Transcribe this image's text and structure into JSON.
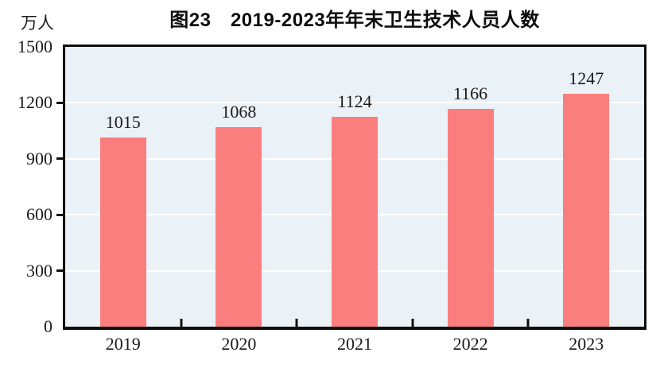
{
  "chart_data": {
    "type": "bar",
    "title": "图23　2019-2023年年末卫生技术人员人数",
    "unit": "万人",
    "categories": [
      "2019",
      "2020",
      "2021",
      "2022",
      "2023"
    ],
    "values": [
      1015,
      1068,
      1124,
      1166,
      1247
    ],
    "ylim": [
      0,
      1500
    ],
    "yticks": [
      0,
      300,
      600,
      900,
      1200,
      1500
    ],
    "grid": true,
    "legend": false,
    "colors": {
      "bar": "#fb7e7e",
      "plot_background": "#eaf1f7",
      "gridline": "#ffffff",
      "axis": "#0e0e0e",
      "text": "#1a1a1a"
    }
  }
}
